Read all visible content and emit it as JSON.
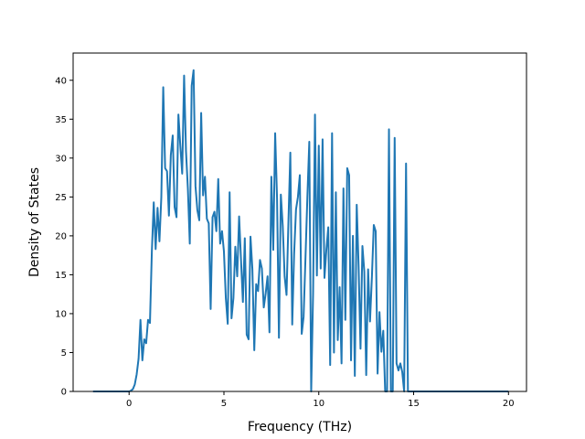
{
  "chart_data": {
    "type": "line",
    "title": "",
    "xlabel": "Frequency (THz)",
    "ylabel": "Density of States",
    "xlim": [
      -2.95,
      20.95
    ],
    "ylim": [
      0,
      43.5
    ],
    "xticks": [
      0,
      5,
      10,
      15,
      20
    ],
    "yticks": [
      0,
      5,
      10,
      15,
      20,
      25,
      30,
      35,
      40
    ],
    "grid": false,
    "legend": "none",
    "series": [
      {
        "color": "#1f77b4",
        "points": [
          [
            -1.9,
            0
          ],
          [
            -1.5,
            0
          ],
          [
            -1.0,
            0
          ],
          [
            -0.5,
            0
          ],
          [
            0.0,
            0
          ],
          [
            0.1,
            0.1
          ],
          [
            0.2,
            0.3
          ],
          [
            0.3,
            0.9
          ],
          [
            0.4,
            2.2
          ],
          [
            0.5,
            4.2
          ],
          [
            0.6,
            9.2
          ],
          [
            0.7,
            4.0
          ],
          [
            0.8,
            6.7
          ],
          [
            0.9,
            6.2
          ],
          [
            1.0,
            9.2
          ],
          [
            1.1,
            8.8
          ],
          [
            1.2,
            18.0
          ],
          [
            1.3,
            24.3
          ],
          [
            1.4,
            18.3
          ],
          [
            1.5,
            23.6
          ],
          [
            1.6,
            19.3
          ],
          [
            1.7,
            25.0
          ],
          [
            1.8,
            39.1
          ],
          [
            1.9,
            28.7
          ],
          [
            2.0,
            28.3
          ],
          [
            2.1,
            22.6
          ],
          [
            2.2,
            30.4
          ],
          [
            2.3,
            32.9
          ],
          [
            2.4,
            23.7
          ],
          [
            2.5,
            22.4
          ],
          [
            2.6,
            35.6
          ],
          [
            2.7,
            31.6
          ],
          [
            2.8,
            28.0
          ],
          [
            2.9,
            40.6
          ],
          [
            3.0,
            30.9
          ],
          [
            3.1,
            26.0
          ],
          [
            3.2,
            19.0
          ],
          [
            3.3,
            39.3
          ],
          [
            3.4,
            41.3
          ],
          [
            3.5,
            26.4
          ],
          [
            3.6,
            23.3
          ],
          [
            3.7,
            22.0
          ],
          [
            3.8,
            35.8
          ],
          [
            3.9,
            25.2
          ],
          [
            4.0,
            27.6
          ],
          [
            4.1,
            22.2
          ],
          [
            4.2,
            21.6
          ],
          [
            4.3,
            10.6
          ],
          [
            4.4,
            22.4
          ],
          [
            4.5,
            23.1
          ],
          [
            4.6,
            20.6
          ],
          [
            4.7,
            27.3
          ],
          [
            4.8,
            19.0
          ],
          [
            4.9,
            20.6
          ],
          [
            5.0,
            18.0
          ],
          [
            5.1,
            12.0
          ],
          [
            5.2,
            8.7
          ],
          [
            5.3,
            25.6
          ],
          [
            5.4,
            9.4
          ],
          [
            5.5,
            12.0
          ],
          [
            5.6,
            18.6
          ],
          [
            5.7,
            14.8
          ],
          [
            5.8,
            22.5
          ],
          [
            5.9,
            16.9
          ],
          [
            6.0,
            11.5
          ],
          [
            6.1,
            19.7
          ],
          [
            6.2,
            7.3
          ],
          [
            6.3,
            6.7
          ],
          [
            6.4,
            19.9
          ],
          [
            6.5,
            15.7
          ],
          [
            6.6,
            5.3
          ],
          [
            6.7,
            13.8
          ],
          [
            6.8,
            12.9
          ],
          [
            6.9,
            16.9
          ],
          [
            7.0,
            15.8
          ],
          [
            7.1,
            10.8
          ],
          [
            7.2,
            12.6
          ],
          [
            7.3,
            14.8
          ],
          [
            7.4,
            7.6
          ],
          [
            7.5,
            27.6
          ],
          [
            7.6,
            18.2
          ],
          [
            7.7,
            33.2
          ],
          [
            7.8,
            24.8
          ],
          [
            7.9,
            6.9
          ],
          [
            8.0,
            25.3
          ],
          [
            8.1,
            21.3
          ],
          [
            8.2,
            14.8
          ],
          [
            8.3,
            12.4
          ],
          [
            8.4,
            21.8
          ],
          [
            8.5,
            30.7
          ],
          [
            8.6,
            8.6
          ],
          [
            8.7,
            17.7
          ],
          [
            8.8,
            23.4
          ],
          [
            8.9,
            25.0
          ],
          [
            9.0,
            27.8
          ],
          [
            9.1,
            7.4
          ],
          [
            9.2,
            9.6
          ],
          [
            9.3,
            17.3
          ],
          [
            9.4,
            25.1
          ],
          [
            9.5,
            32.1
          ],
          [
            9.6,
            0
          ],
          [
            9.7,
            12.7
          ],
          [
            9.8,
            35.6
          ],
          [
            9.9,
            14.9
          ],
          [
            10.0,
            31.6
          ],
          [
            10.1,
            15.8
          ],
          [
            10.2,
            32.4
          ],
          [
            10.3,
            14.6
          ],
          [
            10.4,
            18.2
          ],
          [
            10.5,
            21.1
          ],
          [
            10.6,
            3.4
          ],
          [
            10.7,
            33.2
          ],
          [
            10.8,
            5.0
          ],
          [
            10.9,
            25.6
          ],
          [
            11.0,
            6.6
          ],
          [
            11.1,
            13.4
          ],
          [
            11.2,
            3.6
          ],
          [
            11.3,
            26.1
          ],
          [
            11.4,
            9.2
          ],
          [
            11.5,
            28.7
          ],
          [
            11.6,
            27.8
          ],
          [
            11.7,
            4.0
          ],
          [
            11.8,
            20.0
          ],
          [
            11.9,
            2.0
          ],
          [
            12.0,
            24.0
          ],
          [
            12.1,
            16.0
          ],
          [
            12.2,
            5.5
          ],
          [
            12.3,
            18.7
          ],
          [
            12.4,
            15.4
          ],
          [
            12.5,
            2.1
          ],
          [
            12.6,
            15.7
          ],
          [
            12.7,
            9.0
          ],
          [
            12.8,
            14.7
          ],
          [
            12.9,
            21.4
          ],
          [
            13.0,
            20.6
          ],
          [
            13.1,
            2.3
          ],
          [
            13.2,
            10.2
          ],
          [
            13.3,
            5.1
          ],
          [
            13.4,
            7.8
          ],
          [
            13.5,
            0
          ],
          [
            13.6,
            0
          ],
          [
            13.7,
            33.7
          ],
          [
            13.8,
            0
          ],
          [
            13.9,
            0
          ],
          [
            14.0,
            32.6
          ],
          [
            14.1,
            3.6
          ],
          [
            14.2,
            2.7
          ],
          [
            14.3,
            3.6
          ],
          [
            14.4,
            2.5
          ],
          [
            14.5,
            0
          ],
          [
            14.6,
            29.3
          ],
          [
            14.7,
            0
          ],
          [
            15.0,
            0
          ],
          [
            16.0,
            0
          ],
          [
            17.0,
            0
          ],
          [
            18.0,
            0
          ],
          [
            19.0,
            0
          ],
          [
            20.0,
            0
          ]
        ]
      }
    ]
  }
}
